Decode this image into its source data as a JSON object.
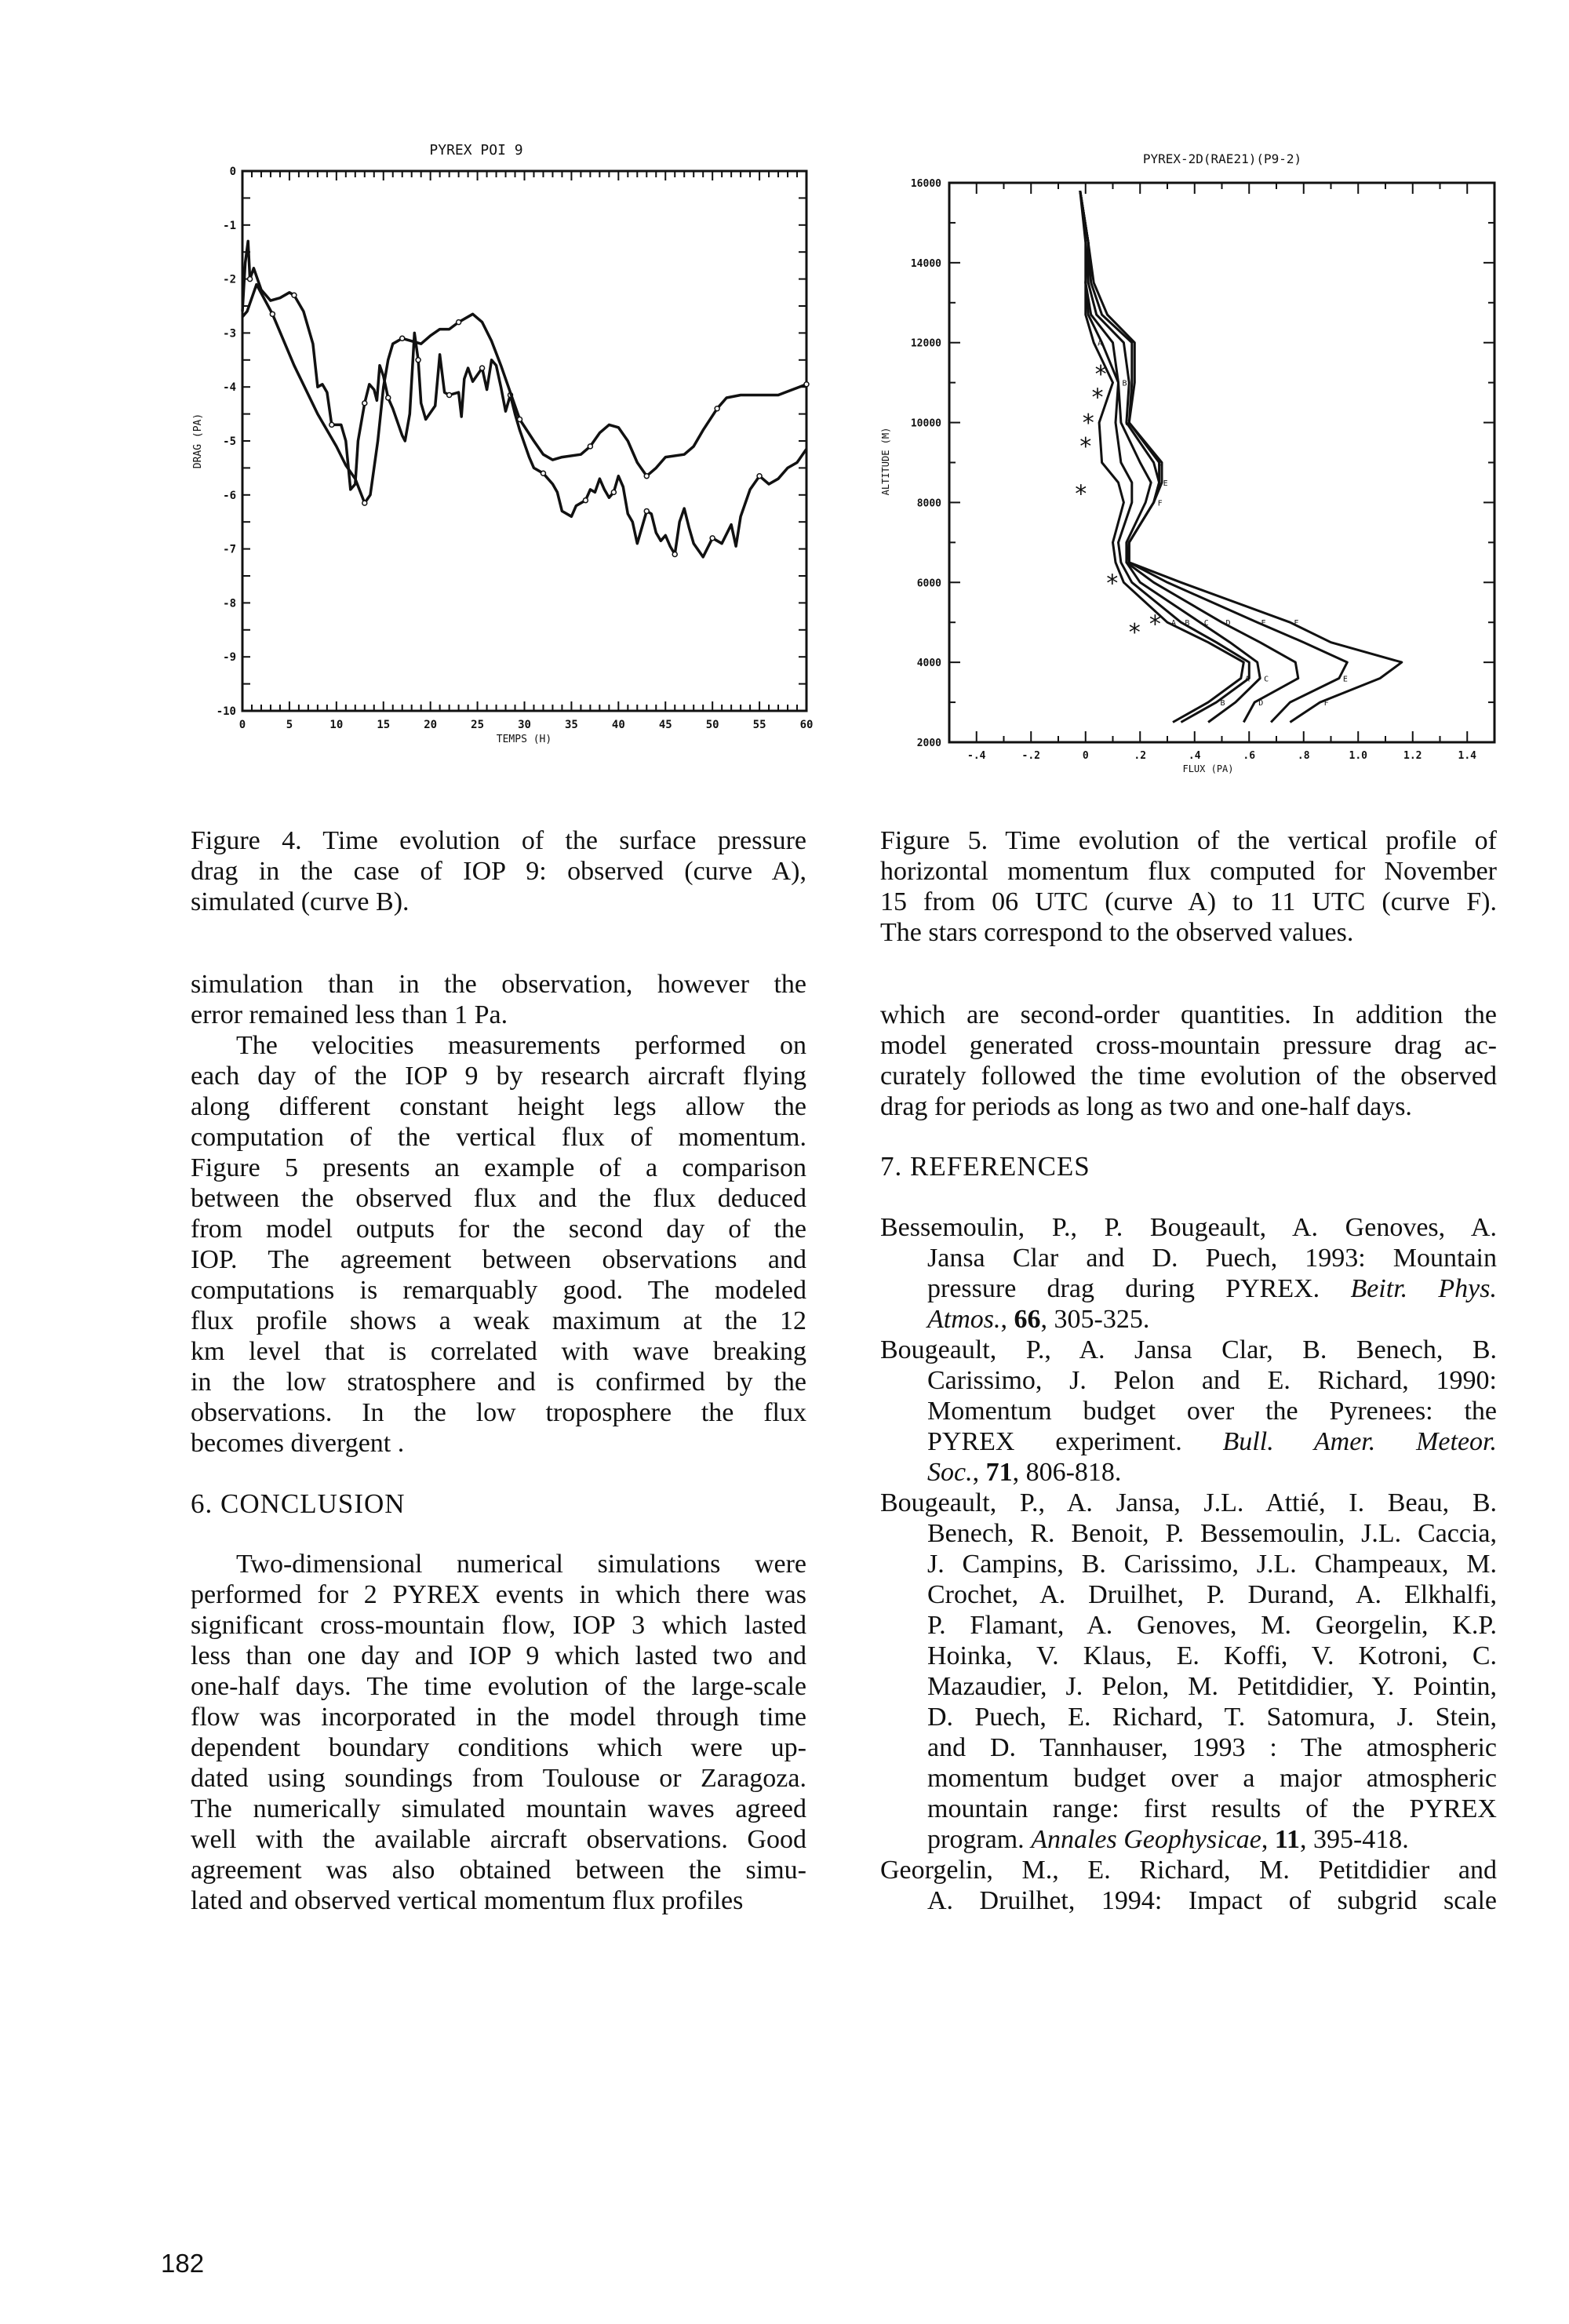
{
  "page_number": "182",
  "figure4": {
    "caption": [
      "Figure 4. Time evolution of the surface pressure",
      "drag in the case of IOP 9: observed (curve A),",
      "simulated (curve B)."
    ]
  },
  "figure5": {
    "caption": [
      "Figure 5. Time evolution of the vertical profile of",
      "horizontal momentum flux computed for November",
      "15 from 06 UTC (curve A) to 11 UTC (curve F).",
      "The stars correspond to the observed values."
    ]
  },
  "left_body": [
    [
      "simulation than in the observation, however the",
      "error remained less than 1 Pa."
    ],
    [
      "The velocities measurements performed on",
      "each day of the IOP 9 by research aircraft flying",
      "along different constant height legs allow the",
      "computation of the vertical flux of momentum.",
      "Figure 5 presents an example of a comparison",
      "between the observed flux and the flux deduced",
      "from model outputs for the second day of the",
      "IOP. The agreement between observations and",
      "computations is remarquably good. The modeled",
      "flux profile shows a weak maximum at the 12",
      "km level that is correlated with wave breaking",
      "in the low stratosphere and is confirmed by the",
      "observations.  In the low troposphere the flux",
      "becomes divergent ."
    ]
  ],
  "conclusion": {
    "heading": "6.   CONCLUSION",
    "paragraph": [
      "Two-dimensional numerical simulations were",
      "performed for 2 PYREX events in which there was",
      "significant cross-mountain flow, IOP 3 which lasted",
      "less than one day and IOP 9 which lasted two and",
      "one-half days. The time evolution of the large-scale",
      "flow was incorporated in the model through time",
      "dependent boundary conditions which were up-",
      "dated using soundings from Toulouse or Zaragoza.",
      "The numerically simulated mountain waves agreed",
      "well with the available aircraft observations. Good",
      "agreement was also obtained between the simu-",
      "lated and observed vertical momentum flux profiles"
    ]
  },
  "right_body": [
    "which are second-order quantities. In addition the",
    "model generated cross-mountain pressure drag ac-",
    "curately followed the time evolution of the observed",
    "drag for periods as long as two and one-half days."
  ],
  "references": {
    "heading": "7.   REFERENCES",
    "entries": [
      [
        "Bessemoulin, P., P. Bougeault, A. Genoves, A.",
        "Jansa Clar and D. Puech, 1993: Mountain",
        [
          {
            "t": "pressure drag during PYREX. "
          },
          {
            "t": "Beitr. Phys.",
            "s": "i"
          }
        ],
        [
          {
            "t": "Atmos.",
            "s": "i"
          },
          {
            "t": ", "
          },
          {
            "t": "66",
            "s": "b"
          },
          {
            "t": ", 305-325."
          }
        ]
      ],
      [
        "Bougeault, P., A. Jansa Clar, B. Benech, B.",
        "Carissimo, J. Pelon and E. Richard, 1990:",
        "Momentum budget over the Pyrenees: the",
        [
          {
            "t": "PYREX experiment. "
          },
          {
            "t": "Bull. Amer. Meteor.",
            "s": "i"
          }
        ],
        [
          {
            "t": "Soc.",
            "s": "i"
          },
          {
            "t": ", "
          },
          {
            "t": "71",
            "s": "b"
          },
          {
            "t": ", 806-818."
          }
        ]
      ],
      [
        "Bougeault, P., A. Jansa, J.L. Attié, I. Beau, B.",
        "Benech, R. Benoit, P. Bessemoulin, J.L. Caccia,",
        "J. Campins, B. Carissimo, J.L. Champeaux, M.",
        "Crochet, A. Druilhet, P. Durand, A. Elkhalfi,",
        "P. Flamant, A. Genoves, M. Georgelin, K.P.",
        "Hoinka, V. Klaus, E. Koffi, V. Kotroni, C.",
        "Mazaudier, J. Pelon, M. Petitdidier, Y. Pointin,",
        "D. Puech, E. Richard, T. Satomura, J. Stein,",
        "and D. Tannhauser, 1993 : The atmospheric",
        "momentum budget over a major atmospheric",
        "mountain range: first results of the PYREX",
        [
          {
            "t": "program. "
          },
          {
            "t": "Annales Geophysicae",
            "s": "i"
          },
          {
            "t": ", "
          },
          {
            "t": "11",
            "s": "b"
          },
          {
            "t": ", 395-418."
          }
        ]
      ],
      [
        "Georgelin, M., E. Richard, M. Petitdidier and",
        "A. Druilhet, 1994: Impact of subgrid scale"
      ]
    ]
  },
  "chart_data": [
    {
      "type": "line",
      "title": "PYREX POI 9",
      "xlabel": "TEMPS (H)",
      "ylabel": "DRAG (PA)",
      "xlim": [
        0,
        60
      ],
      "ylim": [
        -10,
        0
      ],
      "xticks": [
        "0",
        "5",
        "10",
        "15",
        "20",
        "25",
        "30",
        "35",
        "40",
        "45",
        "50",
        "55",
        "60"
      ],
      "yticks": [
        "0",
        "-1",
        "-2",
        "-3",
        "-4",
        "-5",
        "-6",
        "-7",
        "-8",
        "-9",
        "-10"
      ],
      "grid": false,
      "line_color": "#111111",
      "series": [
        {
          "marker": "A",
          "x": [
            0,
            0.3,
            0.6,
            0.8,
            1.2,
            2,
            3,
            4,
            5,
            5.5,
            6.5,
            7.5,
            8,
            8.5,
            9,
            9.5,
            10.5,
            11,
            11.5,
            12,
            12.3,
            13,
            13.5,
            14,
            14.3,
            14.6,
            15,
            15.5,
            16,
            17,
            17.3,
            17.8,
            18.3,
            18.7,
            19,
            19.5,
            20.5,
            21,
            21.5,
            22,
            23,
            23.3,
            23.6,
            24,
            24.5,
            25.5,
            26,
            26.5,
            27,
            27.5,
            28,
            28.5,
            29,
            29.5,
            30,
            30.5,
            31,
            32,
            33,
            33.5,
            34,
            35,
            35.5,
            36.5,
            37,
            37.5,
            38,
            38.5,
            39,
            39.5,
            40,
            40.5,
            41,
            41.5,
            42,
            43,
            43.5,
            44,
            44.5,
            45,
            45.5,
            46,
            46.5,
            47,
            47.5,
            48,
            49,
            50,
            51,
            52,
            52.5,
            53,
            54,
            55,
            56,
            57,
            58,
            59,
            60
          ],
          "y": [
            -2.6,
            -1.7,
            -1.3,
            -2.0,
            -1.8,
            -2.2,
            -2.4,
            -2.35,
            -2.25,
            -2.3,
            -2.6,
            -3.2,
            -4.0,
            -3.95,
            -4.1,
            -4.7,
            -4.7,
            -5.0,
            -5.9,
            -5.8,
            -5.0,
            -4.3,
            -3.95,
            -4.05,
            -4.25,
            -3.6,
            -3.8,
            -4.2,
            -4.4,
            -4.9,
            -5.0,
            -4.5,
            -3.0,
            -3.5,
            -4.3,
            -4.6,
            -4.35,
            -3.4,
            -4.1,
            -4.15,
            -4.1,
            -4.55,
            -3.85,
            -3.65,
            -3.9,
            -3.65,
            -4.05,
            -3.5,
            -3.6,
            -4.0,
            -4.45,
            -4.15,
            -4.5,
            -4.8,
            -5.05,
            -5.3,
            -5.5,
            -5.6,
            -5.8,
            -5.95,
            -6.3,
            -6.4,
            -6.2,
            -6.1,
            -5.9,
            -5.95,
            -5.7,
            -5.9,
            -6.05,
            -5.95,
            -5.65,
            -5.85,
            -6.35,
            -6.5,
            -6.9,
            -6.3,
            -6.35,
            -6.7,
            -6.85,
            -6.75,
            -6.95,
            -7.1,
            -6.5,
            -6.25,
            -6.6,
            -6.9,
            -7.15,
            -6.8,
            -6.9,
            -6.55,
            -6.95,
            -6.4,
            -5.9,
            -5.65,
            -5.8,
            -5.7,
            -5.5,
            -5.4,
            -5.15
          ]
        },
        {
          "marker": "B",
          "x": [
            0,
            0.5,
            1.5,
            3.2,
            5.5,
            8,
            10,
            11,
            12,
            13,
            13.6,
            14.4,
            15,
            15.5,
            16,
            17,
            18,
            19,
            20,
            21,
            22,
            23,
            24.5,
            25.5,
            26.5,
            27.5,
            28.5,
            29.5,
            31,
            32,
            33,
            34,
            36,
            37,
            38,
            39,
            40,
            41,
            42,
            43,
            44,
            45,
            47,
            48,
            49,
            50.5,
            51.5,
            53,
            55,
            57,
            58.5,
            60
          ],
          "y": [
            -2.7,
            -2.6,
            -2.1,
            -2.65,
            -3.6,
            -4.5,
            -5.1,
            -5.45,
            -5.7,
            -6.15,
            -6.0,
            -5.0,
            -4.0,
            -3.5,
            -3.2,
            -3.1,
            -3.15,
            -3.2,
            -3.05,
            -2.93,
            -2.93,
            -2.8,
            -2.65,
            -2.8,
            -3.15,
            -3.6,
            -4.1,
            -4.6,
            -5.0,
            -5.25,
            -5.35,
            -5.3,
            -5.25,
            -5.1,
            -4.85,
            -4.7,
            -4.75,
            -5.0,
            -5.4,
            -5.65,
            -5.5,
            -5.3,
            -5.25,
            -5.1,
            -4.8,
            -4.4,
            -4.2,
            -4.15,
            -4.15,
            -4.15,
            -4.05,
            -3.95
          ]
        }
      ]
    },
    {
      "type": "line",
      "title": "PYREX-2D(RAE21)(P9-2)",
      "xlabel": "FLUX (PA)",
      "ylabel": "ALTITUDE (M)",
      "xlim": [
        -0.5,
        1.5
      ],
      "ylim": [
        2000,
        16000
      ],
      "xticks": [
        "-.4",
        "-.2",
        "0",
        ".2",
        ".4",
        ".6",
        ".8",
        "1.0",
        "1.2",
        "1.4"
      ],
      "yticks": [
        "2000",
        "4000",
        "6000",
        "8000",
        "10000",
        "12000",
        "14000",
        "16000"
      ],
      "grid": false,
      "line_color": "#111111",
      "altitude": [
        15800,
        14500,
        13500,
        12700,
        12000,
        11000,
        10000,
        9000,
        8500,
        8000,
        7000,
        6500,
        6000,
        5000,
        4500,
        4000,
        3600,
        3000,
        2500
      ],
      "series": [
        {
          "marker": "A",
          "flux": [
            -0.02,
            0.0,
            0.0,
            0.0,
            0.03,
            0.1,
            0.05,
            0.06,
            0.12,
            0.14,
            0.1,
            0.11,
            0.14,
            0.3,
            0.45,
            0.58,
            0.57,
            0.45,
            0.32
          ]
        },
        {
          "marker": "B",
          "flux": [
            -0.02,
            0.01,
            0.0,
            0.01,
            0.06,
            0.12,
            0.11,
            0.13,
            0.17,
            0.17,
            0.12,
            0.13,
            0.17,
            0.35,
            0.48,
            0.6,
            0.6,
            0.48,
            0.35
          ]
        },
        {
          "marker": "C",
          "flux": [
            -0.02,
            0.01,
            0.0,
            0.02,
            0.1,
            0.12,
            0.13,
            0.2,
            0.24,
            0.22,
            0.15,
            0.15,
            0.2,
            0.42,
            0.53,
            0.63,
            0.64,
            0.55,
            0.45
          ]
        },
        {
          "marker": "D",
          "flux": [
            -0.02,
            0.01,
            0.01,
            0.04,
            0.14,
            0.16,
            0.15,
            0.25,
            0.27,
            0.25,
            0.16,
            0.15,
            0.25,
            0.5,
            0.64,
            0.77,
            0.78,
            0.62,
            0.58
          ]
        },
        {
          "marker": "E",
          "flux": [
            -0.02,
            0.01,
            0.02,
            0.06,
            0.17,
            0.17,
            0.16,
            0.27,
            0.27,
            0.25,
            0.16,
            0.16,
            0.3,
            0.63,
            0.8,
            0.96,
            0.93,
            0.75,
            0.68
          ]
        },
        {
          "marker": "F",
          "flux": [
            -0.02,
            0.01,
            0.03,
            0.08,
            0.18,
            0.18,
            0.16,
            0.28,
            0.28,
            0.25,
            0.16,
            0.16,
            0.35,
            0.75,
            0.9,
            1.16,
            1.08,
            0.86,
            0.75
          ]
        }
      ],
      "observed": {
        "marker": "*",
        "flux": [
          0.056,
          0.044,
          0.01,
          0.0,
          -0.017,
          0.098,
          0.18,
          0.255
        ],
        "altitude": [
          11230,
          10650,
          10010,
          9420,
          8230,
          6000,
          4770,
          4970
        ]
      }
    }
  ]
}
